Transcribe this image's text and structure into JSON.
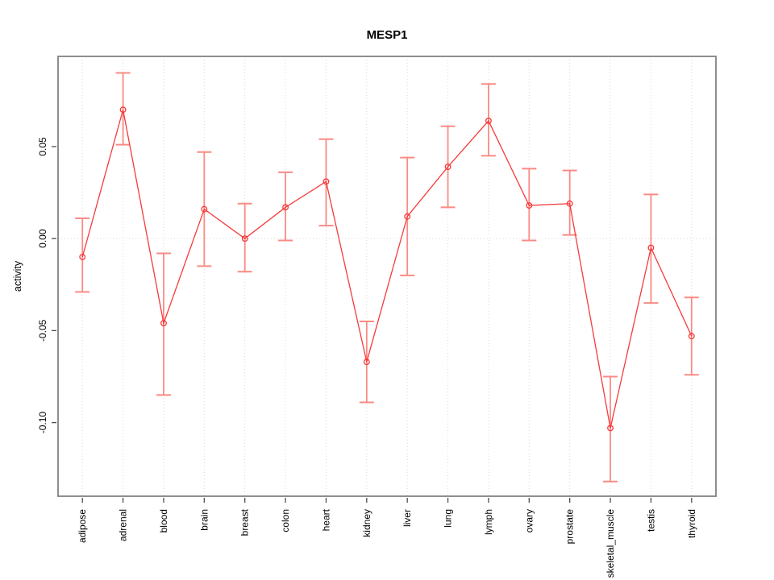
{
  "title": "MESP1",
  "chart_data": {
    "type": "line",
    "title": "MESP1",
    "xlabel": "",
    "ylabel": "activity",
    "legend": "none",
    "grid": {
      "vertical": "dotted line at every category",
      "horizontal": "dotted line at y=0 only"
    },
    "categories": [
      "adipose",
      "adrenal",
      "blood",
      "brain",
      "breast",
      "colon",
      "heart",
      "kidney",
      "liver",
      "lung",
      "lymph",
      "ovary",
      "prostate",
      "skeletal_muscle",
      "testis",
      "thyroid"
    ],
    "series": [
      {
        "name": "activity",
        "values": [
          -0.01,
          0.07,
          -0.046,
          0.016,
          0.0,
          0.017,
          0.031,
          -0.067,
          0.012,
          0.039,
          0.064,
          0.018,
          0.019,
          -0.103,
          -0.005,
          -0.053
        ],
        "error_upper": [
          0.011,
          0.09,
          -0.008,
          0.047,
          0.019,
          0.036,
          0.054,
          -0.045,
          0.044,
          0.061,
          0.084,
          0.038,
          0.037,
          -0.075,
          0.024,
          -0.032
        ],
        "error_lower": [
          -0.029,
          0.051,
          -0.085,
          -0.015,
          -0.018,
          -0.001,
          0.007,
          -0.089,
          -0.02,
          0.017,
          0.045,
          -0.001,
          0.002,
          -0.132,
          -0.035,
          -0.074
        ]
      }
    ],
    "y_ticks": [
      0.05,
      0.0,
      -0.05,
      -0.1
    ],
    "y_tick_labels": [
      "0.05",
      "0.00",
      "-0.05",
      "-0.10"
    ],
    "ylim": [
      -0.14,
      0.099
    ],
    "marker": "open-circle",
    "colors": {
      "line": "#f53b3b",
      "point": "#f53b3b",
      "error_bar": "#fa8b84",
      "grid": "#d9d9d9",
      "box": "#828282",
      "tick": "#4d4d4d",
      "text": "#000000",
      "background": "#ffffff"
    }
  }
}
